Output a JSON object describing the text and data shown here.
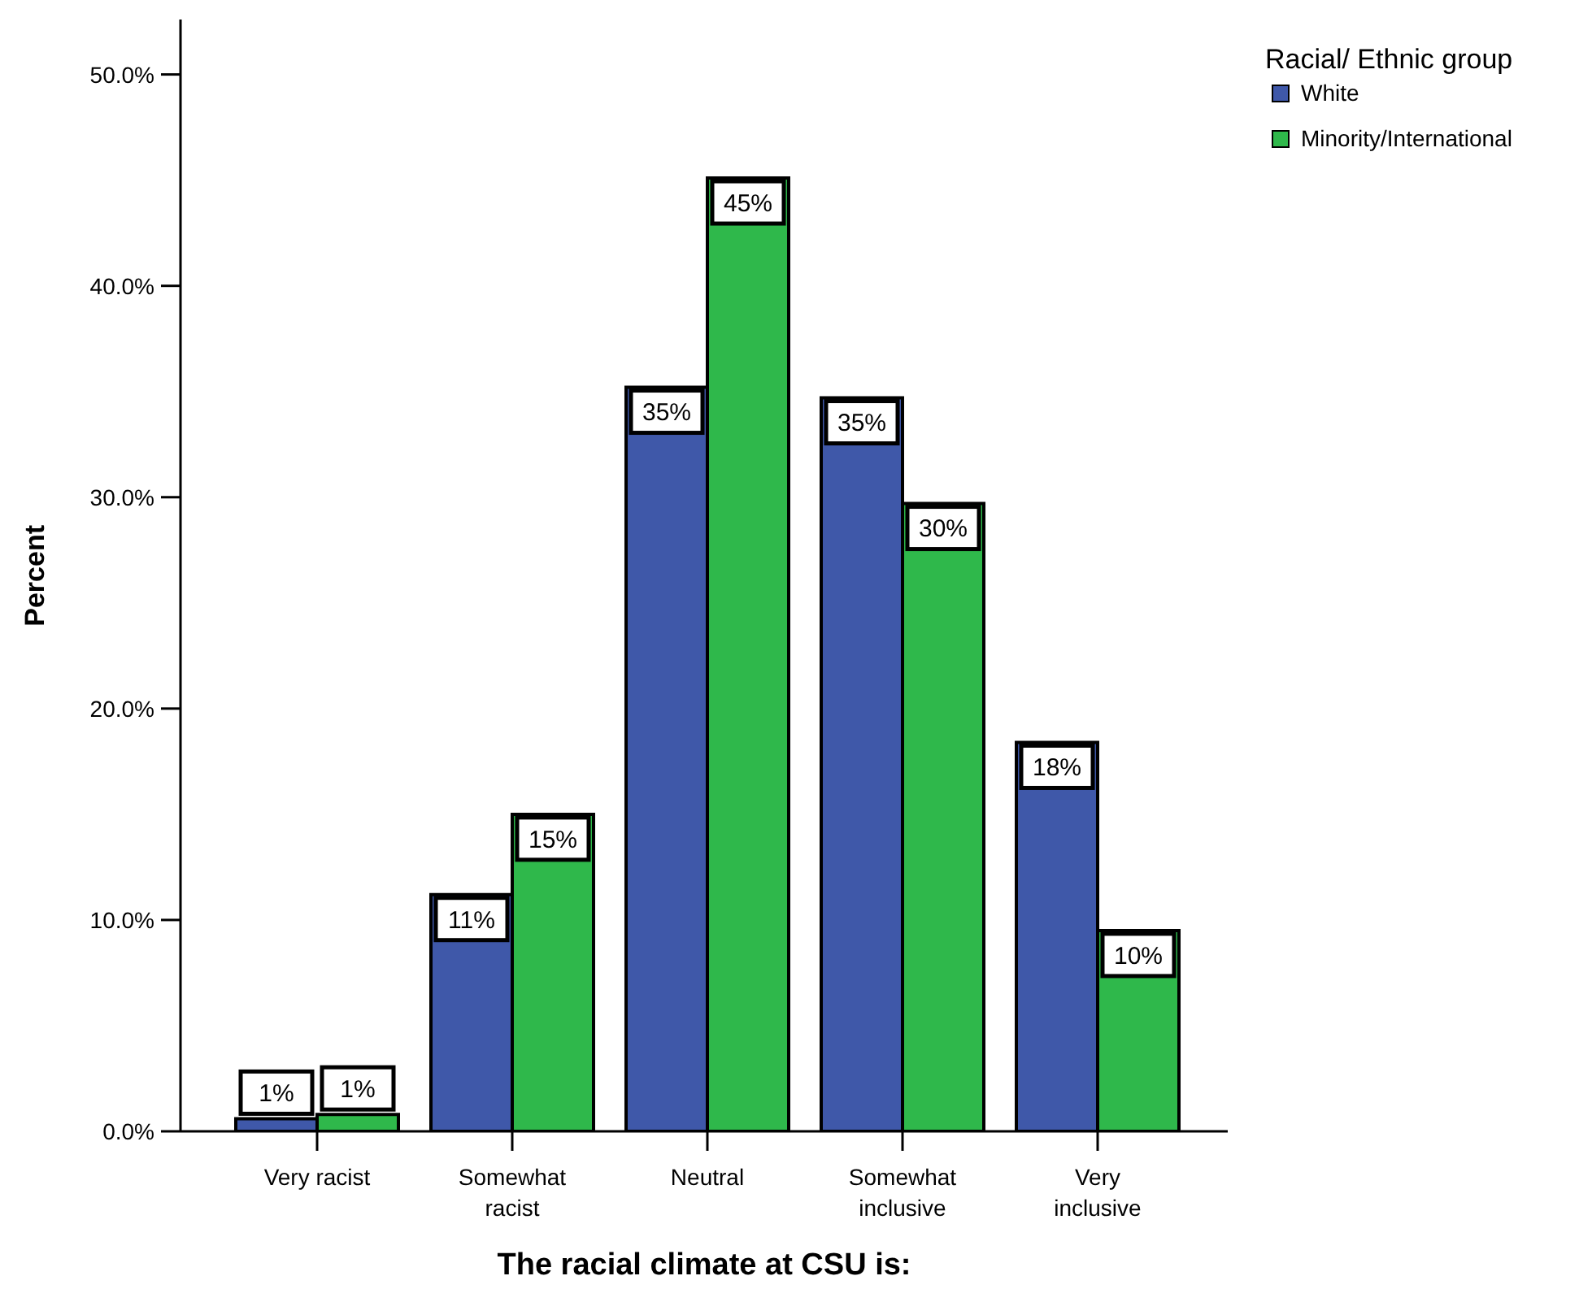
{
  "chart_data": {
    "type": "bar",
    "xlabel": "The racial climate at CSU is:",
    "ylabel": "Percent",
    "legend_title": "Racial/ Ethnic group",
    "legend": "top right",
    "categories": [
      "Very racist",
      "Somewhat\nracist",
      "Neutral",
      "Somewhat\ninclusive",
      "Very\ninclusive"
    ],
    "series": [
      {
        "name": "White",
        "color": "#3f58a9",
        "values": [
          0.6,
          11.2,
          35.2,
          34.7,
          18.4
        ],
        "value_labels": [
          "1%",
          "11%",
          "35%",
          "35%",
          "18%"
        ]
      },
      {
        "name": "Minority/International",
        "color": "#2fb84b",
        "values": [
          0.8,
          15.0,
          45.1,
          29.7,
          9.5
        ],
        "value_labels": [
          "1%",
          "15%",
          "45%",
          "30%",
          "10%"
        ]
      }
    ],
    "ylim": [
      0,
      52.6
    ],
    "yticks": [
      {
        "value": 0,
        "label": "0.0%"
      },
      {
        "value": 10,
        "label": "10.0%"
      },
      {
        "value": 20,
        "label": "20.0%"
      },
      {
        "value": 30,
        "label": "30.0%"
      },
      {
        "value": 40,
        "label": "40.0%"
      },
      {
        "value": 50,
        "label": "50.0%"
      }
    ]
  }
}
